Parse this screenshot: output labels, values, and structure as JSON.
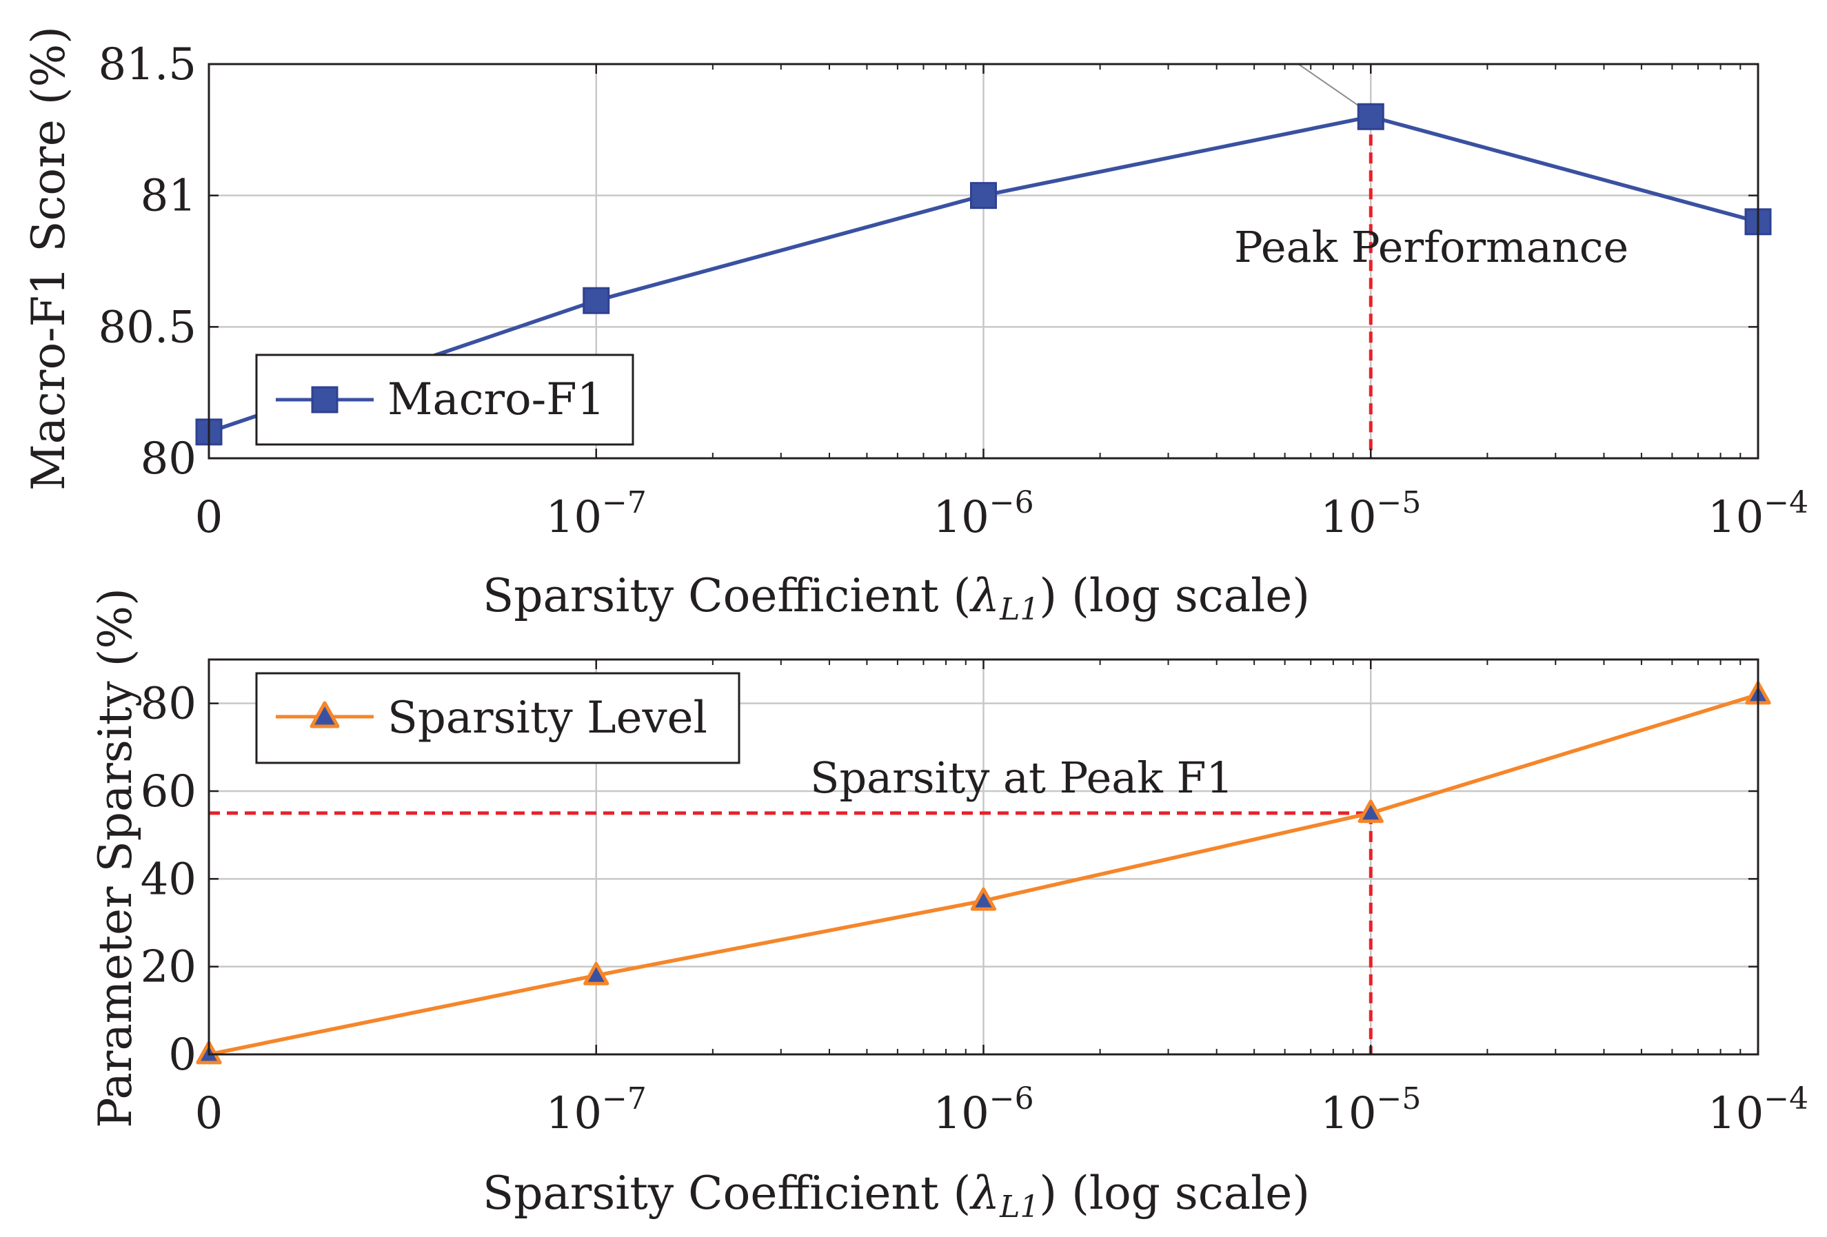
{
  "chart_data": [
    {
      "type": "line",
      "ylabel": "Macro-F1 Score (%)",
      "xlabel": "Sparsity Coefficient (λL1) (log scale)",
      "xlabel_parts": {
        "before": "Sparsity Coefficient (",
        "lambda": "λ",
        "subscript": "L1",
        "after": ") (log scale)"
      },
      "x_scale": "log",
      "categories": [
        "0",
        "10^-7",
        "10^-6",
        "10^-5",
        "10^-4"
      ],
      "x_ticks": [
        {
          "base": "0",
          "exp": ""
        },
        {
          "base": "10",
          "exp": "−7"
        },
        {
          "base": "10",
          "exp": "−6"
        },
        {
          "base": "10",
          "exp": "−5"
        },
        {
          "base": "10",
          "exp": "−4"
        }
      ],
      "ylim": [
        80,
        81.5
      ],
      "y_ticks": [
        {
          "value": 80,
          "label": "80"
        },
        {
          "value": 80.5,
          "label": "80.5"
        },
        {
          "value": 81,
          "label": "81"
        },
        {
          "value": 81.5,
          "label": "81.5"
        }
      ],
      "grid": true,
      "legend_position": "bottom-left",
      "series": [
        {
          "name": "Macro-F1",
          "marker": "square",
          "color": "#3a51a1",
          "values": [
            80.1,
            80.6,
            81.0,
            81.3,
            80.9
          ]
        }
      ],
      "annotations": [
        {
          "text": "Peak Performance",
          "at_category_index": 3,
          "value": 81.3,
          "style": "vertical dashed line to x-axis",
          "color": "#e8202a"
        }
      ]
    },
    {
      "type": "line",
      "ylabel": "Parameter Sparsity (%)",
      "xlabel": "Sparsity Coefficient (λL1) (log scale)",
      "xlabel_parts": {
        "before": "Sparsity Coefficient (",
        "lambda": "λ",
        "subscript": "L1",
        "after": ") (log scale)"
      },
      "x_scale": "log",
      "categories": [
        "0",
        "10^-7",
        "10^-6",
        "10^-5",
        "10^-4"
      ],
      "x_ticks": [
        {
          "base": "0",
          "exp": ""
        },
        {
          "base": "10",
          "exp": "−7"
        },
        {
          "base": "10",
          "exp": "−6"
        },
        {
          "base": "10",
          "exp": "−5"
        },
        {
          "base": "10",
          "exp": "−4"
        }
      ],
      "ylim": [
        0,
        90
      ],
      "y_ticks": [
        {
          "value": 0,
          "label": "0"
        },
        {
          "value": 20,
          "label": "20"
        },
        {
          "value": 40,
          "label": "40"
        },
        {
          "value": 60,
          "label": "60"
        },
        {
          "value": 80,
          "label": "80"
        }
      ],
      "grid": true,
      "legend_position": "top-left",
      "series": [
        {
          "name": "Sparsity Level",
          "marker": "triangle",
          "color": "#f5862a",
          "values": [
            0,
            18,
            35,
            55,
            82
          ]
        }
      ],
      "annotations": [
        {
          "text": "Sparsity at Peak F1",
          "at_category_index": 3,
          "value": 55,
          "style": "dashed crosshair lines to both axes",
          "color": "#e8202a"
        }
      ]
    }
  ],
  "colors": {
    "axis": "#231f20",
    "grid": "#c8c8c8",
    "minor_tick": "#231f20",
    "annotation": "#e8202a",
    "marker_inner": "#3a51a1"
  }
}
